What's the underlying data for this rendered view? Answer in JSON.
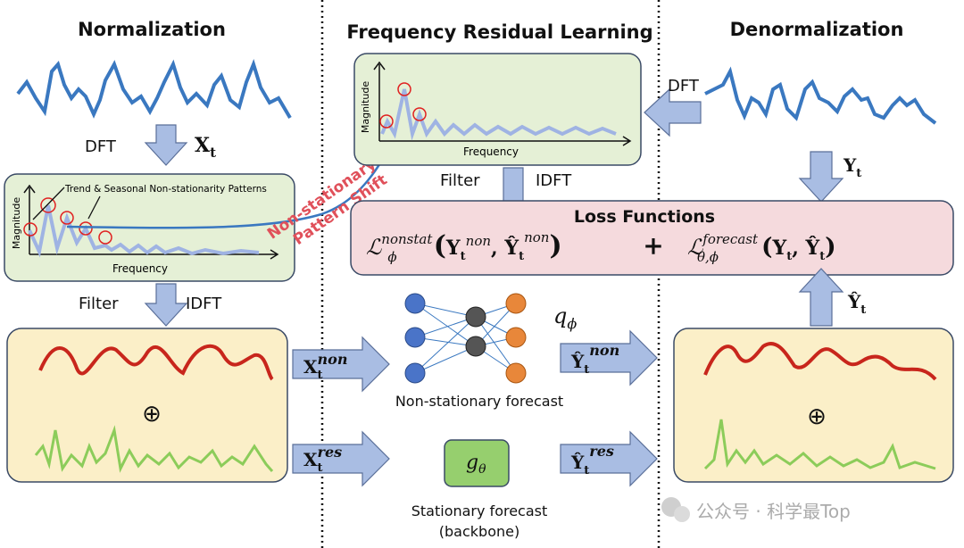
{
  "titles": {
    "normalization": "Normalization",
    "frl": "Frequency Residual Learning",
    "denormalization": "Denormalization"
  },
  "labels": {
    "dft_left": "DFT",
    "xt": "X",
    "xt_sub": "t",
    "spectrum_annotation": "Trend & Seasonal Non-stationarity Patterns",
    "magnitude": "Magnitude",
    "frequency": "Frequency",
    "filter_left": "Filter",
    "idft_left": "IDFT",
    "filter_mid": "Filter",
    "idft_mid": "IDFT",
    "dft_right": "DFT",
    "yt": "Y",
    "yt_sub": "t",
    "yhat": "Ŷ",
    "yhat_sub": "t",
    "pattern_shift_1": "Non-stationary",
    "pattern_shift_2": "Pattern Shift",
    "loss_title": "Loss Functions",
    "loss_nonstat_sup": "nonstat",
    "loss_phi": "ϕ",
    "loss_non": "non",
    "loss_forecast_sup": "forecast",
    "loss_theta_phi": "θ,ϕ",
    "plus": "+",
    "x_non_sup": "non",
    "x_res_sup": "res",
    "yhat_non_sup": "non",
    "yhat_res_sup": "res",
    "q_phi": "q",
    "q_sub": "ϕ",
    "g_theta": "g",
    "g_sub": "θ",
    "oplus": "⊕",
    "nonstat_forecast": "Non-stationary forecast",
    "stat_forecast_1": "Stationary forecast",
    "stat_forecast_2": "(backbone)",
    "watermark": "公众号 · 科学最Top"
  },
  "colors": {
    "wave_blue": "#3a78c0",
    "spectrum": "#9fb3e3",
    "red": "#c8261c",
    "green": "#8ccc5a",
    "highlight": "#e02020",
    "shift_text": "#e0505a"
  }
}
